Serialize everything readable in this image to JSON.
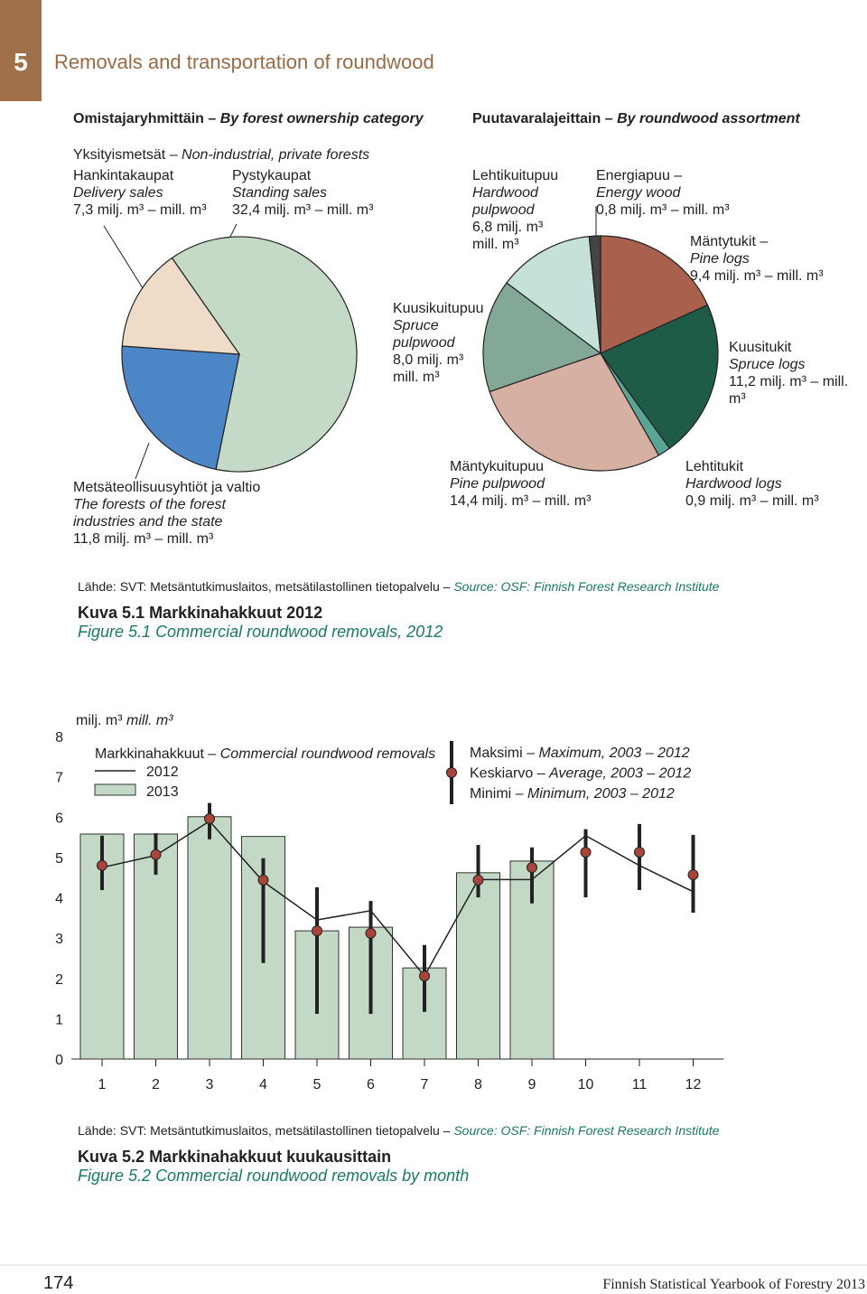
{
  "header": {
    "chapter": "5",
    "title": "Removals and transportation of roundwood"
  },
  "chart_data": [
    {
      "type": "pie",
      "title": "Omistajaryhmittäin –",
      "title_en": "By forest ownership category",
      "group_label": "Yksityismetsät –",
      "group_label_en": "Non-industrial, private forests",
      "categories": [
        "Pystykaupat",
        "Metsäteollisuusyhtiöt ja valtio",
        "Hankintakaupat"
      ],
      "categories_en": [
        "Standing sales",
        "The forests of the forest industries and the state",
        "Delivery sales"
      ],
      "values": [
        32.4,
        11.8,
        7.3
      ],
      "value_labels": [
        "32,4 milj. m³ – mill. m³",
        "11,8 milj. m³ – mill. m³",
        "7,3 milj. m³ – mill. m³"
      ],
      "colors": [
        "#c4dac6",
        "#4d86c6",
        "#efdcc8"
      ]
    },
    {
      "type": "pie",
      "title": "Puutavaralajeittain –",
      "title_en": "By roundwood assortment",
      "categories": [
        "Mäntytukit –",
        "Kuusitukit",
        "Lehtitukit",
        "Mäntykuitupuu",
        "Kuusikuitupuu",
        "Lehtikuitupuu",
        "Energiapuu –"
      ],
      "categories_en": [
        "Pine logs",
        "Spruce logs",
        "Hardwood logs",
        "Pine pulpwood",
        "Spruce pulpwood",
        "Hardwood pulpwood",
        "Energy wood"
      ],
      "values": [
        9.4,
        11.2,
        0.9,
        14.4,
        8.0,
        6.8,
        0.8
      ],
      "value_labels": [
        "9,4 milj. m³ – mill. m³",
        "11,2 milj. m³ – mill. m³",
        "0,9 milj. m³ – mill. m³",
        "14,4 milj. m³ – mill. m³",
        "8,0 milj. m³ mill. m³",
        "6,8 milj. m³ mill. m³",
        "0,8 milj. m³ – mill. m³"
      ],
      "colors": [
        "#a9604d",
        "#1e5c48",
        "#5aa596",
        "#d6b1a3",
        "#84a898",
        "#c5e1da",
        "#444444"
      ]
    },
    {
      "type": "combo",
      "y_label": "milj. m³",
      "y_label_en": "mill. m³",
      "legend_title": "Markkinahakkuut –",
      "legend_title_en": "Commercial roundwood removals",
      "categories": [
        "1",
        "2",
        "3",
        "4",
        "5",
        "6",
        "7",
        "8",
        "9",
        "10",
        "11",
        "12"
      ],
      "series": [
        {
          "name": "2012",
          "type": "line",
          "color": "#222222",
          "values": [
            4.75,
            5.05,
            5.9,
            4.4,
            3.45,
            3.68,
            2.06,
            4.45,
            4.45,
            5.54,
            4.8,
            4.15
          ]
        },
        {
          "name": "2013",
          "type": "bar",
          "color": "#c3d9c5",
          "values": [
            5.58,
            5.58,
            6.01,
            5.52,
            3.18,
            3.27,
            2.26,
            4.62,
            4.91,
            null,
            null,
            null
          ]
        }
      ],
      "range": {
        "color": "#a8443a",
        "labels": [
          "Maksimi –",
          "Keskiarvo –",
          "Minimi –"
        ],
        "labels_en": [
          "Maximum, 2003 – 2012",
          "Average, 2003 – 2012",
          "Minimum, 2003 – 2012"
        ],
        "max": [
          5.54,
          5.6,
          6.35,
          4.98,
          4.26,
          3.92,
          2.83,
          5.31,
          5.25,
          5.7,
          5.83,
          5.56
        ],
        "mean": [
          4.8,
          5.07,
          5.96,
          4.44,
          3.18,
          3.12,
          2.06,
          4.44,
          4.75,
          5.13,
          5.13,
          4.57
        ],
        "min": [
          4.19,
          4.57,
          5.45,
          2.38,
          1.12,
          1.12,
          1.17,
          4.01,
          3.86,
          4.01,
          4.19,
          3.63
        ]
      },
      "ylim": [
        0,
        8
      ],
      "yticks": [
        0,
        1,
        2,
        3,
        4,
        5,
        6,
        7,
        8
      ]
    }
  ],
  "captions": [
    {
      "source": "Lähde: SVT: Metsäntutkimuslaitos, metsätilastollinen tietopalvelu –",
      "source_en": "Source: OSF: Finnish Forest Research Institute",
      "figure_no": "Kuva 5.1",
      "figure_title": "Markkinahakkuut 2012",
      "figure_no_en": "Figure 5.1",
      "figure_title_en": "Commercial roundwood removals, 2012"
    },
    {
      "source": "Lähde: SVT: Metsäntutkimuslaitos, metsätilastollinen tietopalvelu –",
      "source_en": "Source: OSF: Finnish Forest Research Institute",
      "figure_no": "Kuva 5.2",
      "figure_title": "Markkinahakkuut kuukausittain",
      "figure_no_en": "Figure 5.2",
      "figure_title_en": "Commercial roundwood removals by month"
    }
  ],
  "footer": {
    "page": "174",
    "publication": "Finnish Statistical Yearbook of Forestry 2013"
  }
}
